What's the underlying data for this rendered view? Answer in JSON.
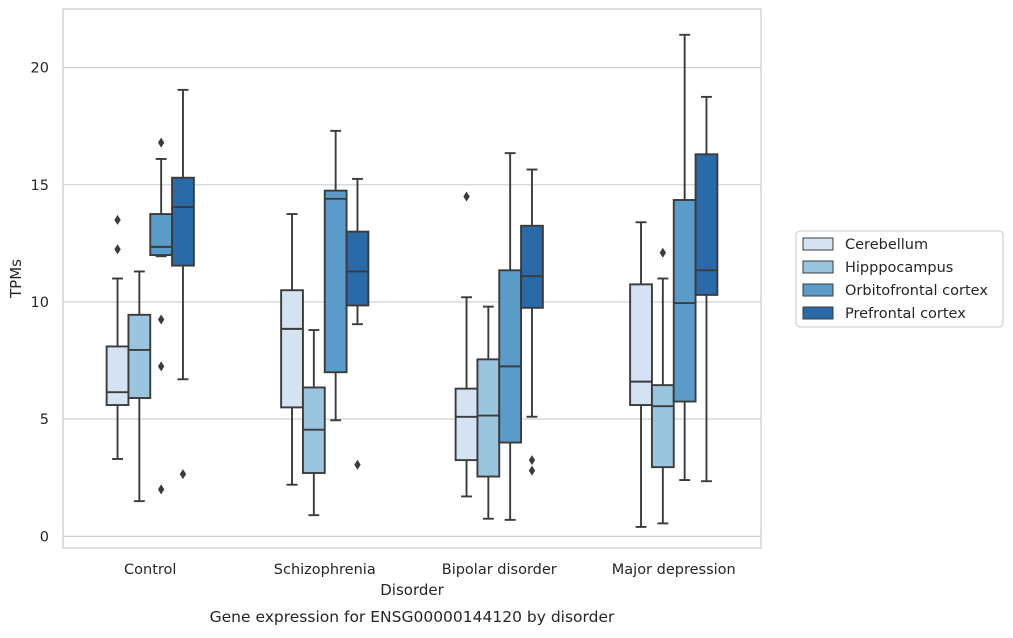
{
  "chart_data": {
    "type": "box",
    "title": "Gene expression for ENSG00000144120 by disorder",
    "xlabel": "Disorder",
    "ylabel": "TPMs",
    "ylim": [
      -0.5,
      22.5
    ],
    "yticks": [
      0,
      5,
      10,
      15,
      20
    ],
    "grid": "horizontal",
    "legend_position": "right",
    "categories": [
      "Control",
      "Schizophrenia",
      "Bipolar disorder",
      "Major depression"
    ],
    "series": [
      {
        "name": "Cerebellum",
        "color": "#d4e2f2",
        "boxes": [
          {
            "whislo": 3.3,
            "q1": 5.6,
            "med": 6.15,
            "q3": 8.1,
            "whishi": 11.0,
            "fliers": [
              12.25,
              13.5
            ]
          },
          {
            "whislo": 2.2,
            "q1": 5.5,
            "med": 8.85,
            "q3": 10.5,
            "whishi": 13.75,
            "fliers": []
          },
          {
            "whislo": 1.7,
            "q1": 3.25,
            "med": 5.1,
            "q3": 6.3,
            "whishi": 10.2,
            "fliers": [
              14.5
            ]
          },
          {
            "whislo": 0.4,
            "q1": 5.6,
            "med": 6.6,
            "q3": 10.75,
            "whishi": 13.4,
            "fliers": []
          }
        ]
      },
      {
        "name": "Hipppocampus",
        "color": "#9bc4de",
        "boxes": [
          {
            "whislo": 1.5,
            "q1": 5.9,
            "med": 7.95,
            "q3": 9.45,
            "whishi": 11.3,
            "fliers": []
          },
          {
            "whislo": 0.9,
            "q1": 2.7,
            "med": 4.55,
            "q3": 6.35,
            "whishi": 8.8,
            "fliers": []
          },
          {
            "whislo": 0.75,
            "q1": 2.55,
            "med": 5.15,
            "q3": 7.55,
            "whishi": 9.8,
            "fliers": []
          },
          {
            "whislo": 0.55,
            "q1": 2.95,
            "med": 5.55,
            "q3": 6.45,
            "whishi": 11.0,
            "fliers": [
              12.1
            ]
          }
        ]
      },
      {
        "name": "Orbitofrontal cortex",
        "color": "#5a9bc9",
        "boxes": [
          {
            "whislo": 11.95,
            "q1": 12.0,
            "med": 12.35,
            "q3": 13.75,
            "whishi": 16.1,
            "fliers": [
              16.8,
              9.25,
              7.25,
              2.0
            ]
          },
          {
            "whislo": 4.95,
            "q1": 7.0,
            "med": 14.4,
            "q3": 14.75,
            "whishi": 17.3,
            "fliers": []
          },
          {
            "whislo": 0.7,
            "q1": 4.0,
            "med": 7.25,
            "q3": 11.35,
            "whishi": 16.35,
            "fliers": []
          },
          {
            "whislo": 2.4,
            "q1": 5.75,
            "med": 9.95,
            "q3": 14.35,
            "whishi": 21.4,
            "fliers": []
          }
        ]
      },
      {
        "name": "Prefrontal cortex",
        "color": "#2b6aa9",
        "boxes": [
          {
            "whislo": 6.7,
            "q1": 11.55,
            "med": 14.05,
            "q3": 15.3,
            "whishi": 19.05,
            "fliers": [
              2.65
            ]
          },
          {
            "whislo": 9.05,
            "q1": 9.85,
            "med": 11.3,
            "q3": 13.0,
            "whishi": 15.25,
            "fliers": [
              3.05
            ]
          },
          {
            "whislo": 5.1,
            "q1": 9.75,
            "med": 11.1,
            "q3": 13.25,
            "whishi": 15.65,
            "fliers": [
              3.25,
              2.8
            ]
          },
          {
            "whislo": 2.35,
            "q1": 10.3,
            "med": 11.35,
            "q3": 16.3,
            "whishi": 18.75,
            "fliers": []
          }
        ]
      }
    ]
  }
}
